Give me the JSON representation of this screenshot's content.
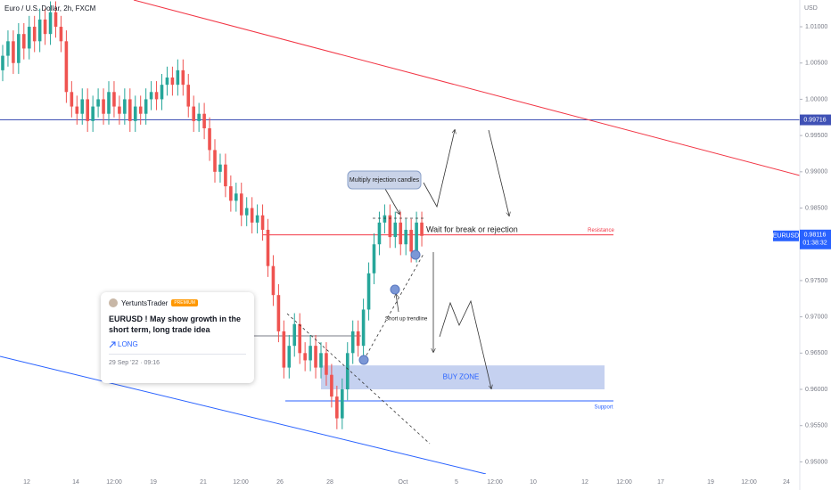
{
  "header": {
    "symbol": "Euro / U.S. Dollar, 2h, FXCM",
    "currency": "USD"
  },
  "chart_data": {
    "type": "candlestick",
    "ylim": [
      0.94833,
      1.01369
    ],
    "yticks": [
      {
        "value": 1.01,
        "label": "1.01000"
      },
      {
        "value": 1.005,
        "label": "1.00500"
      },
      {
        "value": 1.0,
        "label": "1.00000"
      },
      {
        "value": 0.995,
        "label": "0.99500"
      },
      {
        "value": 0.99,
        "label": "0.99000"
      },
      {
        "value": 0.985,
        "label": "0.98500"
      },
      {
        "value": 0.975,
        "label": "0.97500"
      },
      {
        "value": 0.97,
        "label": "0.97000"
      },
      {
        "value": 0.965,
        "label": "0.96500"
      },
      {
        "value": 0.96,
        "label": "0.96000"
      },
      {
        "value": 0.955,
        "label": "0.95500"
      },
      {
        "value": 0.95,
        "label": "0.95000"
      }
    ],
    "x_labels": [
      "12",
      "14",
      "12:00",
      "19",
      "21",
      "12:00",
      "26",
      "28",
      "Oct",
      "5",
      "12:00",
      "10",
      "12",
      "12:00",
      "17",
      "19",
      "12:00",
      "24"
    ],
    "open": [
      1.004,
      1.006,
      1.008,
      1.005,
      1.009,
      1.007,
      1.01,
      1.008,
      1.011,
      1.009,
      1.012,
      1.01,
      1.008,
      1.001,
      0.999,
      0.998,
      1.0,
      0.997,
      0.999,
      1.0,
      0.998,
      1.001,
      0.999,
      0.998,
      1.0,
      0.997,
      0.999,
      0.998,
      1.0,
      1.001,
      1.0,
      1.002,
      1.003,
      1.002,
      1.004,
      1.002,
      0.999,
      0.997,
      0.998,
      0.996,
      0.993,
      0.99,
      0.991,
      0.988,
      0.986,
      0.987,
      0.984,
      0.985,
      0.983,
      0.984,
      0.982,
      0.977,
      0.973,
      0.968,
      0.963,
      0.966,
      0.969,
      0.965,
      0.964,
      0.966,
      0.963,
      0.965,
      0.962,
      0.959,
      0.956,
      0.96,
      0.965,
      0.968,
      0.966,
      0.971,
      0.976,
      0.98,
      0.983,
      0.984,
      0.981,
      0.983,
      0.98,
      0.982,
      0.979,
      0.983
    ],
    "high": [
      1.0075,
      1.0095,
      1.0095,
      1.0105,
      1.0105,
      1.0115,
      1.0115,
      1.0125,
      1.0125,
      1.0135,
      1.0135,
      1.0115,
      1.0095,
      1.0025,
      1.0005,
      1.0015,
      1.0015,
      1.0005,
      1.0015,
      1.0015,
      1.0025,
      1.0025,
      1.0005,
      1.0015,
      1.0015,
      1.0005,
      1.0005,
      1.0015,
      1.0025,
      1.0025,
      1.0035,
      1.0045,
      1.0045,
      1.0055,
      1.0055,
      1.0035,
      1.0005,
      0.9995,
      0.9995,
      0.9975,
      0.9945,
      0.9925,
      0.9925,
      0.9895,
      0.9885,
      0.9885,
      0.9865,
      0.9865,
      0.9855,
      0.9855,
      0.9835,
      0.9785,
      0.9745,
      0.9695,
      0.9675,
      0.9705,
      0.9705,
      0.9665,
      0.9675,
      0.9675,
      0.9665,
      0.9665,
      0.9635,
      0.9605,
      0.9615,
      0.9665,
      0.9695,
      0.9695,
      0.9725,
      0.9775,
      0.9815,
      0.9845,
      0.9855,
      0.9855,
      0.9845,
      0.9845,
      0.9835,
      0.9835,
      0.9845,
      0.9845
    ],
    "low": [
      1.0025,
      1.0045,
      1.0035,
      1.0035,
      1.0055,
      1.0055,
      1.0065,
      1.0065,
      1.0075,
      1.0075,
      1.0085,
      1.0065,
      0.9995,
      0.9975,
      0.9965,
      0.9965,
      0.9955,
      0.9955,
      0.9975,
      0.9965,
      0.9965,
      0.9975,
      0.9965,
      0.9965,
      0.9955,
      0.9955,
      0.9965,
      0.9965,
      0.9985,
      0.9985,
      0.9985,
      1.0005,
      1.0005,
      1.0005,
      1.0005,
      0.9975,
      0.9955,
      0.9955,
      0.9945,
      0.9915,
      0.9885,
      0.9885,
      0.9865,
      0.9845,
      0.9845,
      0.9825,
      0.9825,
      0.9815,
      0.9815,
      0.9805,
      0.9755,
      0.9715,
      0.9665,
      0.9615,
      0.9615,
      0.9645,
      0.9635,
      0.9625,
      0.9625,
      0.9615,
      0.9615,
      0.9605,
      0.9575,
      0.9545,
      0.9545,
      0.9585,
      0.9635,
      0.9645,
      0.9645,
      0.9695,
      0.9745,
      0.9785,
      0.9815,
      0.9795,
      0.9795,
      0.9785,
      0.9785,
      0.9775,
      0.9775,
      0.9797
    ],
    "close": [
      1.006,
      1.008,
      1.005,
      1.009,
      1.007,
      1.01,
      1.008,
      1.011,
      1.009,
      1.012,
      1.01,
      1.008,
      1.001,
      0.999,
      0.998,
      1.0,
      0.997,
      0.999,
      1.0,
      0.998,
      1.001,
      0.999,
      0.998,
      1.0,
      0.997,
      0.999,
      0.998,
      1.0,
      1.001,
      1.0,
      1.002,
      1.003,
      1.002,
      1.004,
      1.002,
      0.999,
      0.997,
      0.998,
      0.996,
      0.993,
      0.99,
      0.991,
      0.988,
      0.986,
      0.987,
      0.984,
      0.985,
      0.983,
      0.984,
      0.982,
      0.977,
      0.973,
      0.968,
      0.963,
      0.966,
      0.969,
      0.965,
      0.964,
      0.966,
      0.963,
      0.965,
      0.962,
      0.959,
      0.956,
      0.96,
      0.965,
      0.968,
      0.966,
      0.971,
      0.976,
      0.98,
      0.983,
      0.984,
      0.981,
      0.983,
      0.98,
      0.982,
      0.979,
      0.983,
      0.98116
    ],
    "up_color": "#26a69a",
    "down_color": "#ef5350",
    "levels": {
      "horizontal": 0.99716,
      "resistance": 0.9813,
      "support": 0.9584,
      "buy_zone": [
        0.96,
        0.9633
      ]
    },
    "symbol": "EURUSD",
    "last_price": 0.98116,
    "countdown": "01:38:32",
    "annotations": {
      "rejection": "Multiply rejection candles",
      "wait": "Wait for break or rejection",
      "trendline": "Short up trendline",
      "resistance": "Resistance",
      "support": "Support",
      "buy_zone": "BUY ZONE"
    }
  },
  "idea_card": {
    "author": "YertuntsTrader",
    "badge": "PREMIUM",
    "title": "EURUSD ! May show growth in the short term, long trade idea",
    "direction": "LONG",
    "date": "29 Sep '22 · 09:16"
  }
}
